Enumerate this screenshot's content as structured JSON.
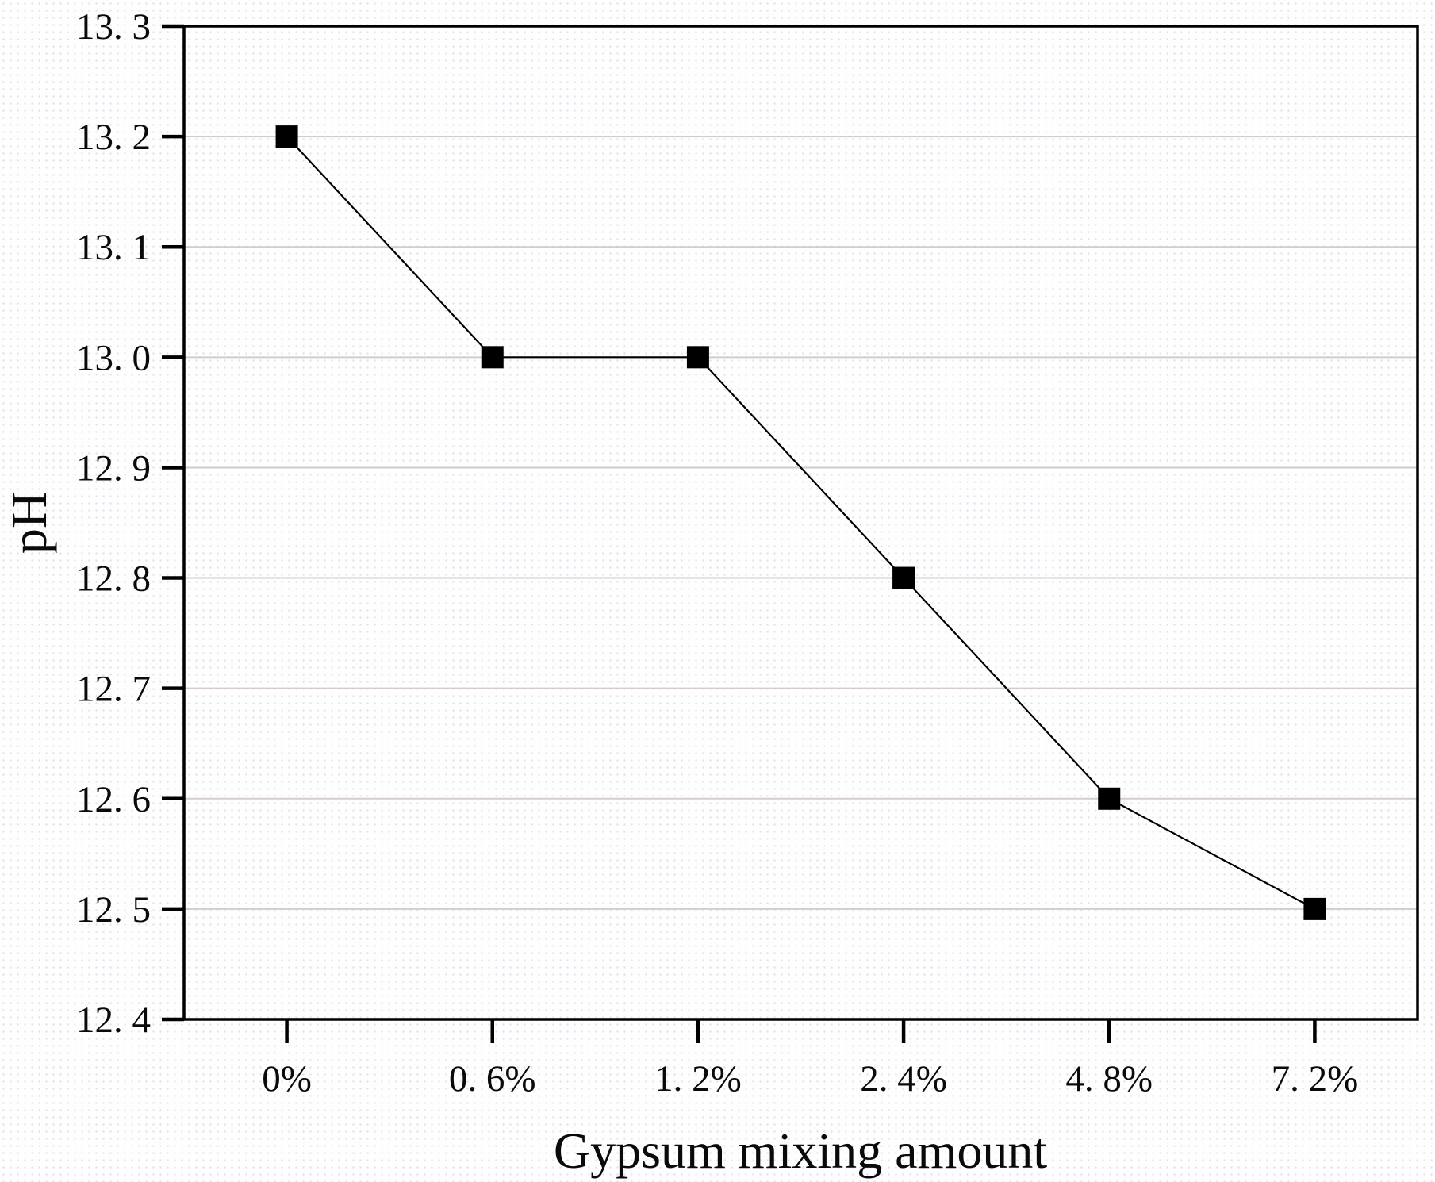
{
  "figure": {
    "background": "#fefefe",
    "axis_color": "#000000",
    "grid_color": "#d4cbcb",
    "marker_color": "#000000"
  },
  "chart_data": {
    "type": "line",
    "title": "",
    "xlabel": "Gypsum mixing amount",
    "ylabel": "pH",
    "categories": [
      "0%",
      "0.6%",
      "1.2%",
      "2.4%",
      "4.8%",
      "7.2%"
    ],
    "x_tick_labels": [
      "0%",
      "0. 6%",
      "1. 2%",
      "2. 4%",
      "4. 8%",
      "7. 2%"
    ],
    "series": [
      {
        "name": "pH",
        "values": [
          13.2,
          13.0,
          13.0,
          12.8,
          12.6,
          12.5
        ],
        "color": "#000000",
        "marker": "square"
      }
    ],
    "ylim": [
      12.4,
      13.3
    ],
    "y_tick_step": 0.1,
    "y_tick_labels": [
      "12. 4",
      "12. 5",
      "12. 6",
      "12. 7",
      "12. 8",
      "12. 9",
      "13. 0",
      "13. 1",
      "13. 2",
      "13. 3"
    ],
    "grid": "horizontal",
    "legend": "none"
  }
}
